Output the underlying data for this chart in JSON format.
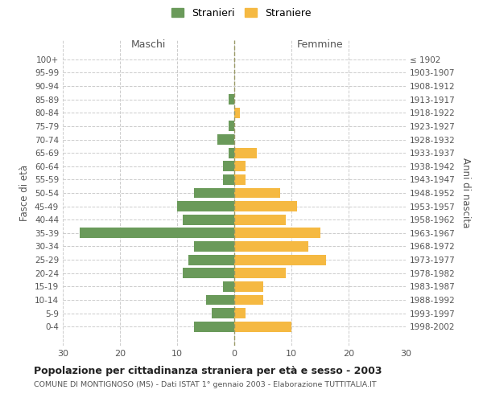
{
  "age_groups": [
    "0-4",
    "5-9",
    "10-14",
    "15-19",
    "20-24",
    "25-29",
    "30-34",
    "35-39",
    "40-44",
    "45-49",
    "50-54",
    "55-59",
    "60-64",
    "65-69",
    "70-74",
    "75-79",
    "80-84",
    "85-89",
    "90-94",
    "95-99",
    "100+"
  ],
  "birth_years": [
    "1998-2002",
    "1993-1997",
    "1988-1992",
    "1983-1987",
    "1978-1982",
    "1973-1977",
    "1968-1972",
    "1963-1967",
    "1958-1962",
    "1953-1957",
    "1948-1952",
    "1943-1947",
    "1938-1942",
    "1933-1937",
    "1928-1932",
    "1923-1927",
    "1918-1922",
    "1913-1917",
    "1908-1912",
    "1903-1907",
    "≤ 1902"
  ],
  "maschi": [
    7,
    4,
    5,
    2,
    9,
    8,
    7,
    27,
    9,
    10,
    7,
    2,
    2,
    1,
    3,
    1,
    0,
    1,
    0,
    0,
    0
  ],
  "femmine": [
    10,
    2,
    5,
    5,
    9,
    16,
    13,
    15,
    9,
    11,
    8,
    2,
    2,
    4,
    0,
    0,
    1,
    0,
    0,
    0,
    0
  ],
  "maschi_color": "#6a9a5a",
  "femmine_color": "#f5b942",
  "background_color": "#ffffff",
  "grid_color": "#cccccc",
  "title": "Popolazione per cittadinanza straniera per età e sesso - 2003",
  "subtitle": "COMUNE DI MONTIGNOSO (MS) - Dati ISTAT 1° gennaio 2003 - Elaborazione TUTTITALIA.IT",
  "ylabel_left": "Fasce di età",
  "ylabel_right": "Anni di nascita",
  "xlabel_left": "Maschi",
  "xlabel_right": "Femmine",
  "legend_maschi": "Stranieri",
  "legend_femmine": "Straniere",
  "xlim": 30
}
